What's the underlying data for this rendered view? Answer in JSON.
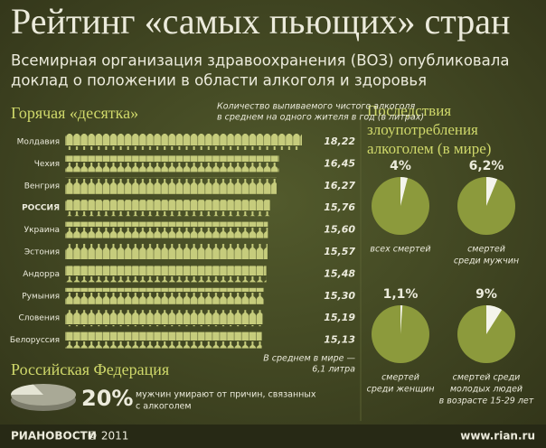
{
  "header": {
    "title": "Рейтинг «самых пьющих» стран",
    "subtitle": [
      "Всемирная организация здравоохранения (ВОЗ) опубликовала",
      "доклад о положении в области алкоголя и здоровья"
    ]
  },
  "consequences_title": [
    "Последствия",
    "злоупотребления",
    "алкоголем (в мире)"
  ],
  "chart_data": [
    {
      "type": "bar",
      "title": "Горячая «десятка»",
      "note": [
        "Количество выпиваемого чистого алкоголя",
        "в среднем на одного жителя в год (в литрах)"
      ],
      "categories": [
        "Молдавия",
        "Чехия",
        "Венгрия",
        "РОССИЯ",
        "Украина",
        "Эстония",
        "Андорра",
        "Румыния",
        "Словения",
        "Белоруссия"
      ],
      "values": [
        18.22,
        16.45,
        16.27,
        15.76,
        15.6,
        15.57,
        15.48,
        15.3,
        15.19,
        15.13
      ],
      "value_labels": [
        "18,22",
        "16,45",
        "16,27",
        "15,76",
        "15,60",
        "15,57",
        "15,48",
        "15,30",
        "15,19",
        "15,13"
      ],
      "color": "#c6cc7c",
      "footnote": [
        "В среднем в мире —",
        "6,1 литра"
      ]
    },
    {
      "type": "pie3d",
      "title": "Российская Федерация",
      "values": [
        20
      ],
      "value_labels": [
        "20%"
      ],
      "color": "#e4e4d4",
      "caption": [
        "мужчин умирают от причин, связанных",
        "с алкоголем"
      ]
    },
    {
      "type": "pie",
      "values": [
        4
      ],
      "value_labels": [
        "4%"
      ],
      "color": "#f4f4ec",
      "caption": [
        "всех смертей"
      ]
    },
    {
      "type": "pie",
      "values": [
        6.2
      ],
      "value_labels": [
        "6,2%"
      ],
      "color": "#f4f4ec",
      "caption": [
        "смертей",
        "среди мужчин"
      ]
    },
    {
      "type": "pie",
      "values": [
        1.1
      ],
      "value_labels": [
        "1,1%"
      ],
      "color": "#f4f4ec",
      "caption": [
        "смертей",
        "среди женщин"
      ]
    },
    {
      "type": "pie",
      "values": [
        9
      ],
      "value_labels": [
        "9%"
      ],
      "color": "#f4f4ec",
      "caption": [
        "смертей среди",
        "молодых людей",
        "в возрасте 15-29 лет"
      ]
    }
  ],
  "footer": {
    "brand": "РИАНОВОСТИ",
    "copyright": "© 2011",
    "url": "www.rian.ru"
  }
}
